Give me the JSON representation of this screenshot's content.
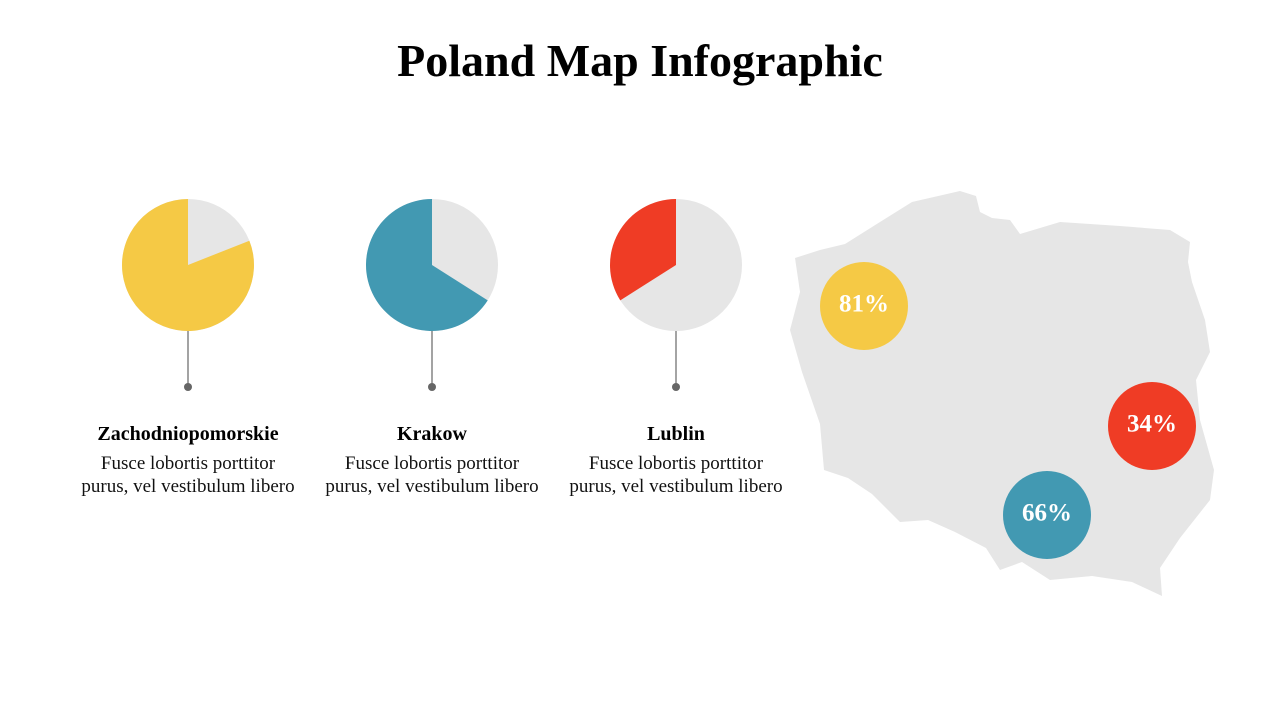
{
  "title": "Poland Map Infographic",
  "chart_data": [
    {
      "type": "pie",
      "title": "Zachodniopomorskie",
      "description": "Fusce lobortis porttitor purus, vel vestibulum libero",
      "values": [
        81
      ],
      "value_labels": [
        "81%"
      ],
      "color": "#f5c945"
    },
    {
      "type": "pie",
      "title": "Krakow",
      "description": "Fusce lobortis porttitor purus, vel vestibulum libero",
      "values": [
        66
      ],
      "value_labels": [
        "66%"
      ],
      "color": "#4299b2"
    },
    {
      "type": "pie",
      "title": "Lublin",
      "description": "Fusce lobortis porttitor purus, vel vestibulum libero",
      "values": [
        34
      ],
      "value_labels": [
        "34%"
      ],
      "color": "#ef3c25"
    }
  ]
}
